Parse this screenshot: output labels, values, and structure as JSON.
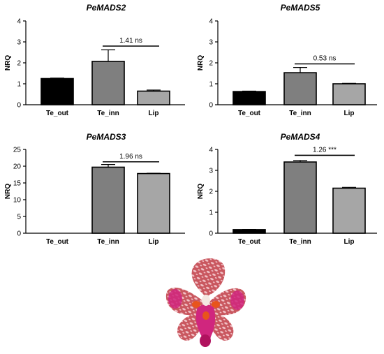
{
  "chart_data": [
    {
      "type": "bar",
      "title": "PeMADS2",
      "ylabel": "NRQ",
      "ylim": [
        0,
        4
      ],
      "yticks": [
        0,
        1,
        2,
        3,
        4
      ],
      "categories": [
        "Te_out",
        "Te_inn",
        "Lip"
      ],
      "values": [
        1.25,
        2.07,
        0.65
      ],
      "errors": [
        0.02,
        0.55,
        0.05
      ],
      "colors": [
        "#000000",
        "#7f7f7f",
        "#a6a6a6"
      ],
      "annotation": {
        "text": "1.41 ns",
        "from": 1,
        "to": 2,
        "y": 2.8
      }
    },
    {
      "type": "bar",
      "title": "PeMADS5",
      "ylabel": "NRQ",
      "ylim": [
        0,
        4
      ],
      "yticks": [
        0,
        1,
        2,
        3,
        4
      ],
      "categories": [
        "Te_out",
        "Te_inn",
        "Lip"
      ],
      "values": [
        0.63,
        1.53,
        1.0
      ],
      "errors": [
        0.02,
        0.25,
        0.02
      ],
      "colors": [
        "#000000",
        "#7f7f7f",
        "#a6a6a6"
      ],
      "annotation": {
        "text": "0.53 ns",
        "from": 1,
        "to": 2,
        "y": 1.95
      }
    },
    {
      "type": "bar",
      "title": "PeMADS3",
      "ylabel": "NRQ",
      "ylim": [
        0,
        25
      ],
      "yticks": [
        0,
        5,
        10,
        15,
        20,
        25
      ],
      "categories": [
        "Te_out",
        "Te_inn",
        "Lip"
      ],
      "values": [
        0,
        19.7,
        17.8
      ],
      "errors": [
        0,
        0.8,
        0.1
      ],
      "colors": [
        "#000000",
        "#7f7f7f",
        "#a6a6a6"
      ],
      "annotation": {
        "text": "1.96 ns",
        "from": 1,
        "to": 2,
        "y": 21.3
      }
    },
    {
      "type": "bar",
      "title": "PeMADS4",
      "ylabel": "NRQ",
      "ylim": [
        0,
        4
      ],
      "yticks": [
        0,
        1,
        2,
        3,
        4
      ],
      "categories": [
        "Te_out",
        "Te_inn",
        "Lip"
      ],
      "values": [
        0.17,
        3.4,
        2.15
      ],
      "errors": [
        0.01,
        0.07,
        0.04
      ],
      "colors": [
        "#000000",
        "#7f7f7f",
        "#a6a6a6"
      ],
      "annotation": {
        "text": "1.26 ***",
        "from": 1,
        "to": 2,
        "y": 3.72
      }
    }
  ],
  "flower_image": {
    "colors": {
      "petal": "#c9575f",
      "spot": "#f2c3c8",
      "lip": "#d0267e",
      "center": "#e8541c"
    }
  }
}
